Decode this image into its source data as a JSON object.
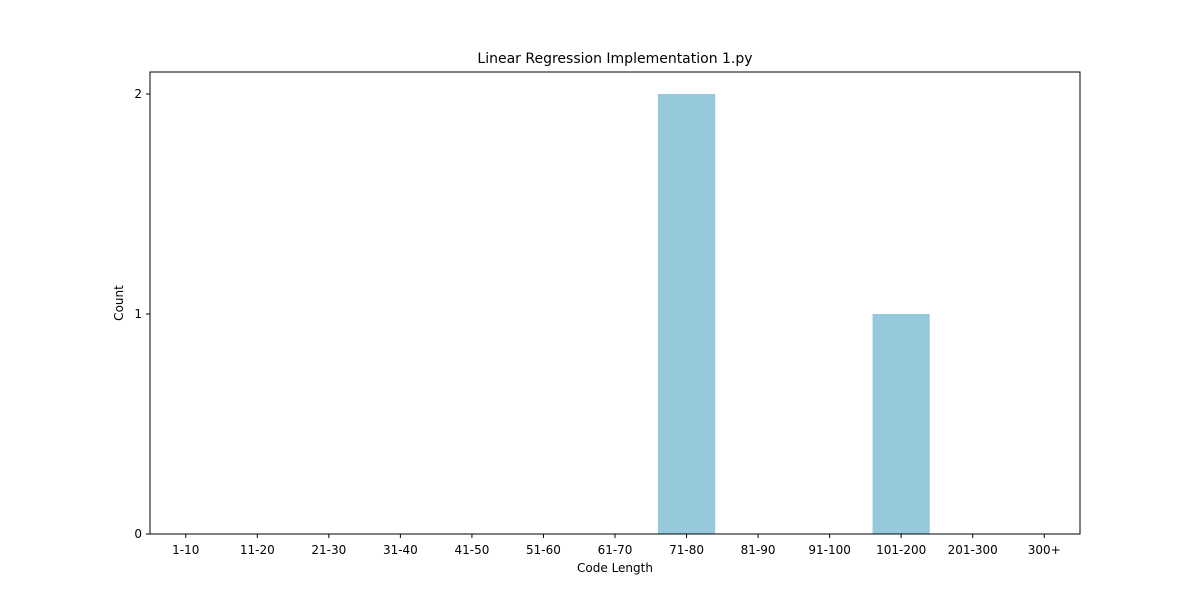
{
  "chart_data": {
    "type": "bar",
    "title": "Linear Regression Implementation 1.py",
    "xlabel": "Code Length",
    "ylabel": "Count",
    "categories": [
      "1-10",
      "11-20",
      "21-30",
      "31-40",
      "41-50",
      "51-60",
      "61-70",
      "71-80",
      "81-90",
      "91-100",
      "101-200",
      "201-300",
      "300+"
    ],
    "values": [
      0,
      0,
      0,
      0,
      0,
      0,
      0,
      2,
      0,
      0,
      1,
      0,
      0
    ],
    "ylim": [
      0,
      2.1
    ],
    "yticks": [
      0,
      1,
      2
    ],
    "grid": false,
    "bar_color": "#96c9dc"
  }
}
